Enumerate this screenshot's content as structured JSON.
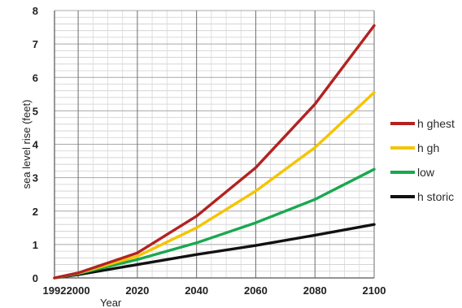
{
  "chart_data": {
    "type": "line",
    "xlabel": "Year",
    "ylabel": "sea level rise (feet)",
    "xlim": [
      1992,
      2100
    ],
    "ylim": [
      0,
      8
    ],
    "x_ticks": [
      "1992",
      "2000",
      "2020",
      "2040",
      "2060",
      "2080",
      "2100"
    ],
    "y_ticks": [
      "0",
      "1",
      "2",
      "3",
      "4",
      "5",
      "6",
      "7",
      "8"
    ],
    "grid": true,
    "legend_position": "right",
    "x": [
      1992,
      2000,
      2020,
      2040,
      2060,
      2080,
      2100
    ],
    "series": [
      {
        "name": "h ghest",
        "color": "#b22222",
        "values": [
          0,
          0.15,
          0.75,
          1.85,
          3.3,
          5.2,
          7.55
        ]
      },
      {
        "name": "h gh",
        "color": "#f5c400",
        "values": [
          0,
          0.14,
          0.65,
          1.5,
          2.6,
          3.9,
          5.55
        ]
      },
      {
        "name": "low",
        "color": "#1aa84f",
        "values": [
          0,
          0.13,
          0.55,
          1.05,
          1.65,
          2.35,
          3.25
        ]
      },
      {
        "name": "h storic",
        "color": "#111111",
        "values": [
          0,
          0.1,
          0.4,
          0.7,
          0.97,
          1.28,
          1.6
        ]
      }
    ]
  }
}
